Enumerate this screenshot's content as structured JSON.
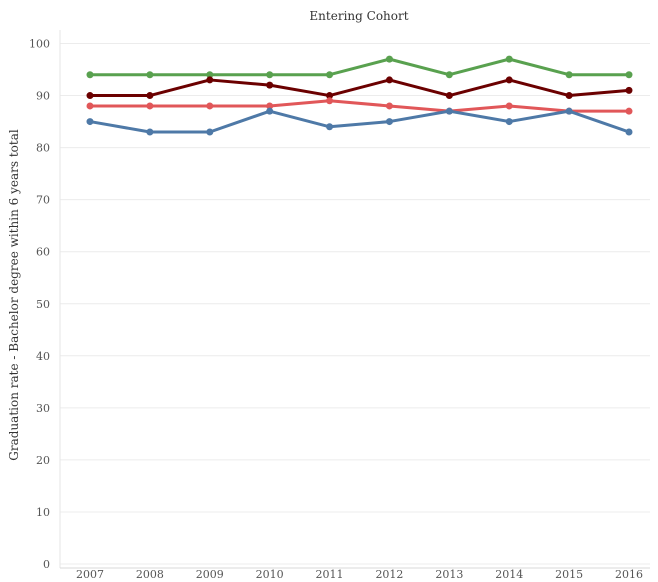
{
  "chart_data": {
    "type": "line",
    "title": "Entering Cohort",
    "xlabel": "",
    "ylabel": "Graduation rate - Bachelor degree within 6 years total",
    "x": [
      "2007",
      "2008",
      "2009",
      "2010",
      "2011",
      "2012",
      "2013",
      "2014",
      "2015",
      "2016"
    ],
    "ylim": [
      0,
      100
    ],
    "yticks": [
      "0",
      "10",
      "20",
      "30",
      "40",
      "50",
      "60",
      "70",
      "80",
      "90",
      "100"
    ],
    "grid": true,
    "legend": "none",
    "series": [
      {
        "color": "#59a14f",
        "values": [
          94,
          94,
          94,
          94,
          94,
          97,
          94,
          97,
          94,
          94
        ]
      },
      {
        "color": "#6b0000",
        "values": [
          90,
          90,
          93,
          92,
          90,
          93,
          90,
          93,
          90,
          91
        ]
      },
      {
        "color": "#e15759",
        "values": [
          88,
          88,
          88,
          88,
          89,
          88,
          87,
          88,
          87,
          87
        ]
      },
      {
        "color": "#4e79a7",
        "values": [
          85,
          83,
          83,
          87,
          84,
          85,
          87,
          85,
          87,
          83
        ]
      }
    ]
  }
}
